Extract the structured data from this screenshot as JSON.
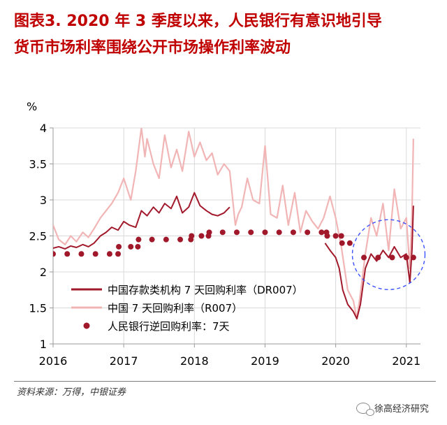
{
  "figure": {
    "title_line1": "图表3.  2020 年 3 季度以来，人民银行有意识地引导",
    "title_line2": "货币市场利率围绕公开市场操作利率波动",
    "source": "资料来源：万得，中银证券",
    "watermark": "徐高经济研究"
  },
  "colors": {
    "title": "#c00000",
    "dr007": "#a2192b",
    "r007": "#f2b5b6",
    "reverse_repo": "#a0182a",
    "annotation": "#3a52ff"
  },
  "chart_data": {
    "type": "line",
    "ylabel": "%",
    "ylim": [
      1,
      4
    ],
    "yticks": [
      "1",
      "1.5",
      "2",
      "2.5",
      "3",
      "3.5",
      "4"
    ],
    "xlim": [
      2016.0,
      2021.2
    ],
    "xticks": [
      "2016",
      "2017",
      "2018",
      "2019",
      "2020",
      "2021"
    ],
    "grid": true,
    "legend_position": "bottom-left",
    "series": [
      {
        "name": "中国存款类机构 7 天回购利率（DR007）",
        "style": "line",
        "x": [
          2016.0,
          2016.08,
          2016.17,
          2016.25,
          2016.33,
          2016.42,
          2016.5,
          2016.58,
          2016.67,
          2016.75,
          2016.83,
          2016.92,
          2017.0,
          2017.08,
          2017.17,
          2017.25,
          2017.33,
          2017.42,
          2017.5,
          2017.58,
          2017.67,
          2017.75,
          2017.83,
          2017.92,
          2018.0,
          2018.08,
          2018.17,
          2018.25,
          2018.33,
          2018.42,
          2018.5
        ],
        "y": [
          2.33,
          2.35,
          2.32,
          2.36,
          2.34,
          2.38,
          2.35,
          2.4,
          2.5,
          2.55,
          2.62,
          2.58,
          2.7,
          2.65,
          2.62,
          2.85,
          2.78,
          2.9,
          2.82,
          2.95,
          2.88,
          3.05,
          2.82,
          2.9,
          3.1,
          2.92,
          2.85,
          2.8,
          2.78,
          2.82,
          2.9
        ]
      },
      {
        "name": "中国存款类机构 7 天回购利率（DR007）",
        "style": "line",
        "x": [
          2019.85,
          2019.92,
          2020.0,
          2020.05,
          2020.1,
          2020.17,
          2020.25,
          2020.3,
          2020.35,
          2020.42,
          2020.5,
          2020.58,
          2020.67,
          2020.75,
          2020.83,
          2020.92,
          2021.0,
          2021.05,
          2021.08,
          2021.1
        ],
        "y": [
          2.4,
          2.3,
          2.2,
          2.05,
          1.75,
          1.55,
          1.45,
          1.35,
          1.55,
          2.05,
          2.25,
          2.15,
          2.3,
          2.2,
          2.35,
          2.2,
          2.25,
          1.85,
          2.3,
          2.92
        ]
      },
      {
        "name": "中国 7 天回购利率（R007）",
        "style": "line",
        "x": [
          2016.0,
          2016.08,
          2016.17,
          2016.25,
          2016.33,
          2016.42,
          2016.5,
          2016.58,
          2016.67,
          2016.75,
          2016.83,
          2016.92,
          2017.0,
          2017.05,
          2017.1,
          2017.17,
          2017.25,
          2017.3,
          2017.33,
          2017.42,
          2017.5,
          2017.58,
          2017.67,
          2017.75,
          2017.83,
          2017.92,
          2018.0,
          2018.08,
          2018.17,
          2018.25,
          2018.33,
          2018.42,
          2018.5,
          2018.58,
          2018.62,
          2018.67,
          2018.75,
          2018.83,
          2018.92,
          2019.0,
          2019.08,
          2019.17,
          2019.25,
          2019.33,
          2019.42,
          2019.5,
          2019.58,
          2019.67,
          2019.75,
          2019.83,
          2019.92,
          2020.0,
          2020.08,
          2020.17,
          2020.25,
          2020.3,
          2020.35,
          2020.42,
          2020.5,
          2020.58,
          2020.67,
          2020.75,
          2020.83,
          2020.92,
          2021.0,
          2021.05,
          2021.08,
          2021.1
        ],
        "y": [
          2.65,
          2.45,
          2.38,
          2.5,
          2.42,
          2.55,
          2.48,
          2.6,
          2.75,
          2.85,
          2.95,
          3.1,
          3.3,
          3.15,
          3.0,
          3.4,
          4.0,
          3.6,
          3.85,
          3.5,
          3.3,
          3.9,
          3.45,
          3.7,
          3.4,
          3.95,
          3.6,
          3.8,
          3.55,
          3.65,
          3.35,
          3.5,
          3.4,
          2.65,
          2.8,
          2.9,
          3.3,
          3.0,
          2.95,
          3.75,
          2.8,
          2.75,
          3.2,
          2.65,
          3.1,
          2.55,
          2.85,
          2.7,
          2.6,
          2.75,
          3.05,
          2.75,
          2.35,
          1.75,
          1.6,
          1.35,
          1.7,
          2.25,
          2.75,
          2.5,
          2.95,
          2.3,
          3.15,
          2.6,
          2.75,
          2.05,
          2.8,
          3.85
        ]
      },
      {
        "name": "人民银行逆回购利率：7天",
        "style": "dots",
        "x": [
          2016.0,
          2016.2,
          2016.4,
          2016.6,
          2016.8,
          2016.92,
          2016.93,
          2017.1,
          2017.2,
          2017.21,
          2017.4,
          2017.6,
          2017.8,
          2017.95,
          2017.96,
          2018.1,
          2018.2,
          2018.21,
          2018.4,
          2018.6,
          2018.8,
          2019.0,
          2019.2,
          2019.4,
          2019.6,
          2019.8,
          2019.87,
          2019.88,
          2020.0,
          2020.08,
          2020.09,
          2020.2,
          2020.4,
          2020.6,
          2020.8,
          2021.0,
          2021.1
        ],
        "y": [
          2.25,
          2.25,
          2.25,
          2.25,
          2.25,
          2.25,
          2.35,
          2.35,
          2.35,
          2.45,
          2.45,
          2.45,
          2.45,
          2.45,
          2.5,
          2.5,
          2.5,
          2.55,
          2.55,
          2.55,
          2.55,
          2.55,
          2.55,
          2.55,
          2.55,
          2.55,
          2.55,
          2.5,
          2.5,
          2.5,
          2.4,
          2.4,
          2.2,
          2.2,
          2.2,
          2.2,
          2.2
        ]
      }
    ],
    "legend": [
      {
        "label": "中国存款类机构 7 天回购利率（DR007）",
        "style": "line",
        "color": "#a2192b"
      },
      {
        "label": "中国 7 天回购利率（R007）",
        "style": "line",
        "color": "#f2b5b6"
      },
      {
        "label": "人民银行逆回购利率：7天",
        "style": "dot",
        "color": "#a0182a"
      }
    ]
  }
}
